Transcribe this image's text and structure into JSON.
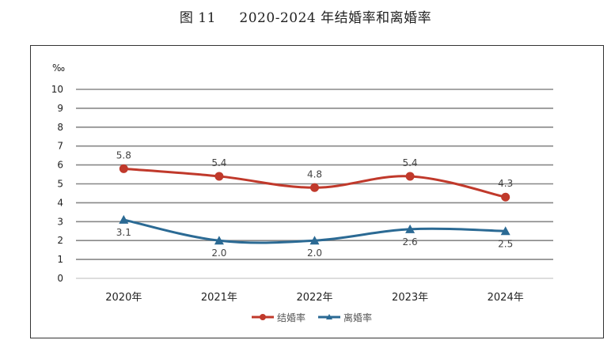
{
  "chart_data": {
    "type": "line",
    "title": "图 11     2020-2024 年结婚率和离婚率",
    "ylabel": "‰",
    "xlabel": "",
    "categories": [
      "2020年",
      "2021年",
      "2022年",
      "2023年",
      "2024年"
    ],
    "ylim": [
      0,
      10
    ],
    "yticks": [
      "0",
      "1",
      "2",
      "3",
      "4",
      "5",
      "6",
      "7",
      "8",
      "9",
      "10"
    ],
    "grid": true,
    "smooth": true,
    "legend_position": "bottom",
    "series": [
      {
        "name": "结婚率",
        "values": [
          5.8,
          5.4,
          4.8,
          5.4,
          4.3
        ],
        "labels": [
          "5.8",
          "5.4",
          "4.8",
          "5.4",
          "4.3"
        ],
        "color": "#c0392b",
        "marker": "circle"
      },
      {
        "name": "离婚率",
        "values": [
          3.1,
          2.0,
          2.0,
          2.6,
          2.5
        ],
        "labels": [
          "3.1",
          "2.0",
          "2.0",
          "2.6",
          "2.5"
        ],
        "color": "#2b6a94",
        "marker": "triangle"
      }
    ]
  }
}
